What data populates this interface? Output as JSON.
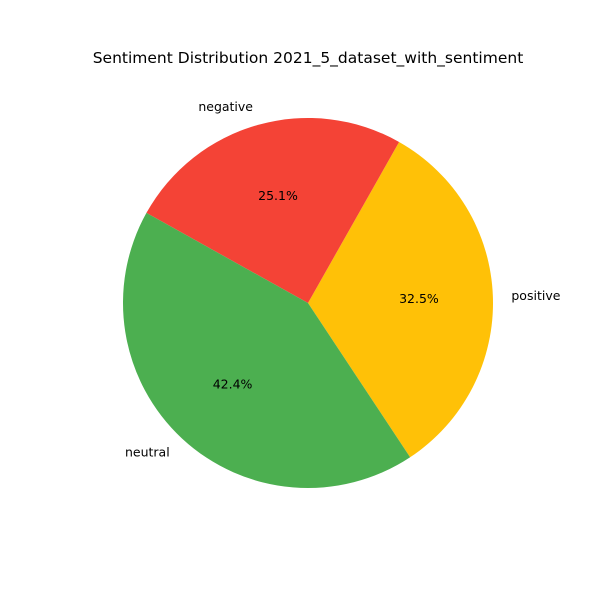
{
  "chart_data": {
    "type": "pie",
    "title": "Sentiment Distribution 2021_5_dataset_with_sentiment",
    "slices": [
      {
        "label": "positive",
        "value": 32.5,
        "pct_label": "32.5%",
        "color": "#FFC107"
      },
      {
        "label": "negative",
        "value": 25.1,
        "pct_label": "25.1%",
        "color": "#F44336"
      },
      {
        "label": "neutral",
        "value": 42.4,
        "pct_label": "42.4%",
        "color": "#4CAF50"
      }
    ],
    "legend": "none"
  }
}
